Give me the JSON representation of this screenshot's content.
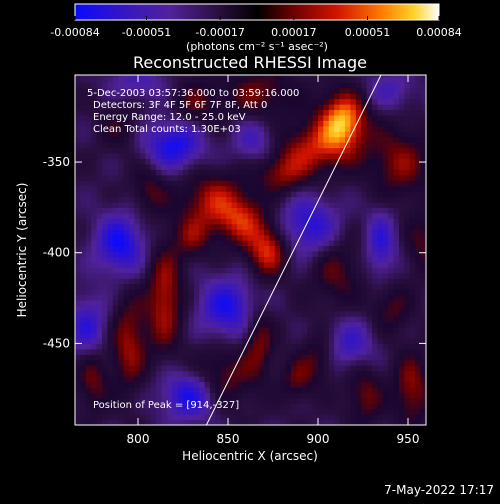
{
  "chart_data": {
    "type": "heatmap",
    "title": "Reconstructed RHESSI Image",
    "xlabel": "Heliocentric X (arcsec)",
    "ylabel": "Heliocentric Y (arcsec)",
    "xlim": [
      765,
      960
    ],
    "ylim": [
      -495,
      -302
    ],
    "x_ticks": [
      "800",
      "850",
      "900",
      "950"
    ],
    "x_tick_values": [
      800,
      850,
      900,
      950
    ],
    "y_ticks": [
      "-350",
      "-400",
      "-450"
    ],
    "y_tick_values": [
      -350,
      -400,
      -450
    ],
    "colorbar": {
      "ticks": [
        "-0.00084",
        "-0.00051",
        "-0.00017",
        "0.00017",
        "0.00051",
        "0.00084"
      ],
      "tick_values": [
        -0.00084,
        -0.00051,
        -0.00017,
        0.00017,
        0.00051,
        0.00084
      ],
      "label": "(photons cm⁻² s⁻¹ asec⁻²)",
      "range": [
        -0.00084,
        0.00084
      ]
    },
    "annotations": [
      "5-Dec-2003 03:57:36.000 to 03:59:16.000",
      "Detectors: 3F 4F 5F 6F 7F 8F, Att 0",
      "Energy Range: 12.0 - 25.0 keV",
      "Clean    Total counts: 1.30E+03"
    ],
    "peak_label": "Position of Peak = [914,-327]",
    "peak": [
      914,
      -327
    ],
    "limb_line": [
      [
        838,
        -495
      ],
      [
        935,
        -302
      ]
    ],
    "blobs": [
      {
        "x": 914,
        "y": -327,
        "sx": 9,
        "sy": 11,
        "v": 0.00084
      },
      {
        "x": 898,
        "y": -342,
        "sx": 14,
        "sy": 10,
        "v": 0.0005
      },
      {
        "x": 880,
        "y": -356,
        "sx": 10,
        "sy": 8,
        "v": 0.0004
      },
      {
        "x": 842,
        "y": -372,
        "sx": 13,
        "sy": 12,
        "v": 0.0005
      },
      {
        "x": 872,
        "y": -398,
        "sx": 8,
        "sy": 10,
        "v": 0.00062
      },
      {
        "x": 858,
        "y": -382,
        "sx": 9,
        "sy": 9,
        "v": 0.00042
      },
      {
        "x": 868,
        "y": -312,
        "sx": 14,
        "sy": 10,
        "v": 0.00035
      },
      {
        "x": 832,
        "y": -318,
        "sx": 10,
        "sy": 10,
        "v": 0.0003
      },
      {
        "x": 945,
        "y": -350,
        "sx": 12,
        "sy": 14,
        "v": 0.0004
      },
      {
        "x": 815,
        "y": -425,
        "sx": 7,
        "sy": 20,
        "v": 0.00052
      },
      {
        "x": 795,
        "y": -450,
        "sx": 7,
        "sy": 18,
        "v": 0.00045
      },
      {
        "x": 775,
        "y": -470,
        "sx": 6,
        "sy": 12,
        "v": 0.00035
      },
      {
        "x": 845,
        "y": -470,
        "sx": 12,
        "sy": 12,
        "v": 0.00045
      },
      {
        "x": 867,
        "y": -448,
        "sx": 6,
        "sy": 14,
        "v": 0.0004
      },
      {
        "x": 910,
        "y": -410,
        "sx": 10,
        "sy": 14,
        "v": 0.00032
      },
      {
        "x": 900,
        "y": -458,
        "sx": 7,
        "sy": 10,
        "v": 0.0003
      },
      {
        "x": 952,
        "y": -475,
        "sx": 7,
        "sy": 14,
        "v": 0.00042
      },
      {
        "x": 926,
        "y": -478,
        "sx": 7,
        "sy": 12,
        "v": 0.00035
      },
      {
        "x": 940,
        "y": -430,
        "sx": 8,
        "sy": 10,
        "v": 0.0003
      },
      {
        "x": 806,
        "y": -365,
        "sx": 7,
        "sy": 10,
        "v": 0.0003
      },
      {
        "x": 790,
        "y": -330,
        "sx": 8,
        "sy": 10,
        "v": 0.00022
      },
      {
        "x": 888,
        "y": -470,
        "sx": 6,
        "sy": 8,
        "v": 0.0003
      },
      {
        "x": 830,
        "y": -392,
        "sx": 7,
        "sy": 8,
        "v": 0.0003
      },
      {
        "x": 958,
        "y": -395,
        "sx": 6,
        "sy": 12,
        "v": 0.00028
      },
      {
        "x": 820,
        "y": -340,
        "sx": 12,
        "sy": 10,
        "v": -0.0006
      },
      {
        "x": 790,
        "y": -395,
        "sx": 10,
        "sy": 12,
        "v": -0.0006
      },
      {
        "x": 850,
        "y": -430,
        "sx": 12,
        "sy": 12,
        "v": -0.00055
      },
      {
        "x": 895,
        "y": -385,
        "sx": 12,
        "sy": 12,
        "v": -0.00052
      },
      {
        "x": 935,
        "y": -395,
        "sx": 6,
        "sy": 14,
        "v": -0.00045
      },
      {
        "x": 830,
        "y": -478,
        "sx": 12,
        "sy": 10,
        "v": -0.00065
      },
      {
        "x": 772,
        "y": -440,
        "sx": 8,
        "sy": 12,
        "v": -0.00045
      },
      {
        "x": 918,
        "y": -450,
        "sx": 10,
        "sy": 10,
        "v": -0.0004
      },
      {
        "x": 865,
        "y": -338,
        "sx": 9,
        "sy": 9,
        "v": -0.00035
      },
      {
        "x": 940,
        "y": -310,
        "sx": 10,
        "sy": 8,
        "v": -0.0003
      },
      {
        "x": 800,
        "y": -305,
        "sx": 12,
        "sy": 8,
        "v": -0.0003
      }
    ]
  },
  "footer": {
    "timestamp": "7-May-2022 17:17"
  }
}
